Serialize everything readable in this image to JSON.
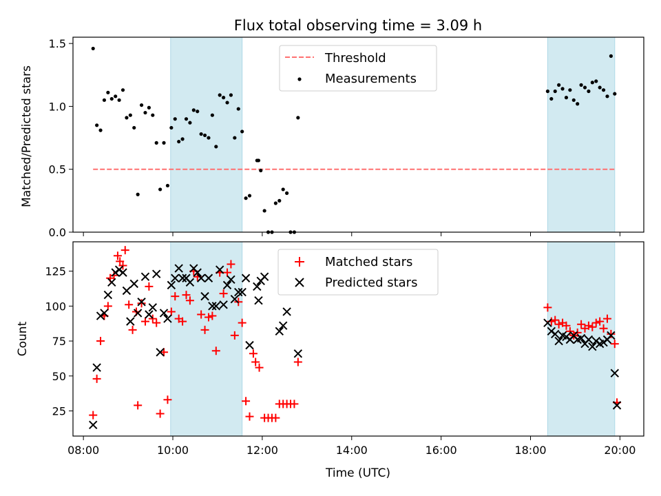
{
  "colors": {
    "threshold": "#ff7070",
    "measurements": "#000000",
    "matched": "#ff0000",
    "predicted": "#000000",
    "shade": "#add8e6"
  },
  "chart_data": [
    {
      "type": "scatter",
      "title": "Flux total observing time = 3.09 h",
      "xlabel": "",
      "ylabel": "Matched/Predicted stars",
      "ylim": [
        0,
        1.55
      ],
      "xlim": [
        "07:46",
        "20:32"
      ],
      "yticks": [
        {
          "v": 0.0,
          "label": "0.0"
        },
        {
          "v": 0.5,
          "label": "0.5"
        },
        {
          "v": 1.0,
          "label": "1.0"
        },
        {
          "v": 1.5,
          "label": "1.5"
        }
      ],
      "legend": {
        "placement": "upper-center",
        "entries": [
          "Threshold",
          "Measurements"
        ]
      },
      "shaded_spans": [
        [
          "09:57",
          "11:33"
        ],
        [
          "18:23",
          "19:53"
        ]
      ],
      "threshold": {
        "name": "Threshold",
        "value": 0.5,
        "x": [
          "08:13",
          "19:53"
        ]
      },
      "measurements": {
        "name": "Measurements",
        "points": [
          [
            "08:13",
            1.46
          ],
          [
            "08:18",
            0.85
          ],
          [
            "08:23",
            0.81
          ],
          [
            "08:28",
            1.05
          ],
          [
            "08:33",
            1.11
          ],
          [
            "08:38",
            1.06
          ],
          [
            "08:43",
            1.08
          ],
          [
            "08:48",
            1.05
          ],
          [
            "08:53",
            1.13
          ],
          [
            "08:58",
            0.91
          ],
          [
            "09:03",
            0.93
          ],
          [
            "09:08",
            0.83
          ],
          [
            "09:13",
            0.3
          ],
          [
            "09:18",
            1.01
          ],
          [
            "09:23",
            0.95
          ],
          [
            "09:28",
            0.99
          ],
          [
            "09:33",
            0.93
          ],
          [
            "09:38",
            0.71
          ],
          [
            "09:43",
            0.34
          ],
          [
            "09:48",
            0.71
          ],
          [
            "09:53",
            0.37
          ],
          [
            "09:58",
            0.83
          ],
          [
            "10:03",
            0.9
          ],
          [
            "10:08",
            0.72
          ],
          [
            "10:13",
            0.74
          ],
          [
            "10:18",
            0.9
          ],
          [
            "10:23",
            0.87
          ],
          [
            "10:28",
            0.97
          ],
          [
            "10:33",
            0.96
          ],
          [
            "10:38",
            0.78
          ],
          [
            "10:43",
            0.77
          ],
          [
            "10:48",
            0.75
          ],
          [
            "10:53",
            0.93
          ],
          [
            "10:58",
            0.68
          ],
          [
            "11:03",
            1.09
          ],
          [
            "11:08",
            1.07
          ],
          [
            "11:13",
            1.03
          ],
          [
            "11:18",
            1.09
          ],
          [
            "11:23",
            0.75
          ],
          [
            "11:28",
            0.98
          ],
          [
            "11:33",
            0.8
          ],
          [
            "11:38",
            0.27
          ],
          [
            "11:43",
            0.29
          ],
          [
            "11:53",
            0.57
          ],
          [
            "11:55",
            0.57
          ],
          [
            "11:58",
            0.49
          ],
          [
            "12:03",
            0.17
          ],
          [
            "12:08",
            0.0
          ],
          [
            "12:13",
            0.0
          ],
          [
            "12:18",
            0.23
          ],
          [
            "12:23",
            0.25
          ],
          [
            "12:28",
            0.34
          ],
          [
            "12:33",
            0.31
          ],
          [
            "12:38",
            0.0
          ],
          [
            "12:43",
            0.0
          ],
          [
            "12:48",
            0.91
          ],
          [
            "18:23",
            1.12
          ],
          [
            "18:28",
            1.06
          ],
          [
            "18:33",
            1.12
          ],
          [
            "18:38",
            1.17
          ],
          [
            "18:43",
            1.14
          ],
          [
            "18:48",
            1.07
          ],
          [
            "18:53",
            1.13
          ],
          [
            "18:58",
            1.05
          ],
          [
            "19:03",
            1.02
          ],
          [
            "19:08",
            1.17
          ],
          [
            "19:13",
            1.15
          ],
          [
            "19:18",
            1.12
          ],
          [
            "19:23",
            1.19
          ],
          [
            "19:28",
            1.2
          ],
          [
            "19:33",
            1.15
          ],
          [
            "19:38",
            1.13
          ],
          [
            "19:43",
            1.08
          ],
          [
            "19:48",
            1.4
          ],
          [
            "19:53",
            1.1
          ]
        ]
      }
    },
    {
      "type": "scatter",
      "xlabel": "Time (UTC)",
      "ylabel": "Count",
      "ylim": [
        7,
        146
      ],
      "xlim": [
        "07:46",
        "20:32"
      ],
      "yticks": [
        {
          "v": 25,
          "label": "25"
        },
        {
          "v": 50,
          "label": "50"
        },
        {
          "v": 75,
          "label": "75"
        },
        {
          "v": 100,
          "label": "100"
        },
        {
          "v": 125,
          "label": "125"
        }
      ],
      "xticks": [
        {
          "t": "08:00",
          "label": "08:00"
        },
        {
          "t": "10:00",
          "label": "10:00"
        },
        {
          "t": "12:00",
          "label": "12:00"
        },
        {
          "t": "14:00",
          "label": "14:00"
        },
        {
          "t": "16:00",
          "label": "16:00"
        },
        {
          "t": "18:00",
          "label": "18:00"
        },
        {
          "t": "20:00",
          "label": "20:00"
        }
      ],
      "legend": {
        "placement": "upper-center",
        "entries": [
          "Matched stars",
          "Predicted stars"
        ]
      },
      "shaded_spans": [
        [
          "09:57",
          "11:33"
        ],
        [
          "18:23",
          "19:53"
        ]
      ],
      "series": [
        {
          "name": "Matched stars",
          "marker": "plus",
          "points": [
            [
              "08:13",
              22
            ],
            [
              "08:18",
              48
            ],
            [
              "08:23",
              75
            ],
            [
              "08:28",
              93
            ],
            [
              "08:33",
              100
            ],
            [
              "08:36",
              120
            ],
            [
              "08:41",
              122
            ],
            [
              "08:46",
              136
            ],
            [
              "08:49",
              132
            ],
            [
              "08:53",
              129
            ],
            [
              "08:56",
              140
            ],
            [
              "09:01",
              101
            ],
            [
              "09:06",
              83
            ],
            [
              "09:11",
              96
            ],
            [
              "09:13",
              29
            ],
            [
              "09:18",
              102
            ],
            [
              "09:23",
              89
            ],
            [
              "09:28",
              114
            ],
            [
              "09:33",
              91
            ],
            [
              "09:38",
              88
            ],
            [
              "09:43",
              23
            ],
            [
              "09:48",
              67
            ],
            [
              "09:53",
              33
            ],
            [
              "09:58",
              96
            ],
            [
              "10:03",
              107
            ],
            [
              "10:08",
              91
            ],
            [
              "10:13",
              89
            ],
            [
              "10:18",
              108
            ],
            [
              "10:23",
              104
            ],
            [
              "10:28",
              125
            ],
            [
              "10:33",
              121
            ],
            [
              "10:38",
              94
            ],
            [
              "10:43",
              83
            ],
            [
              "10:48",
              92
            ],
            [
              "10:53",
              93
            ],
            [
              "10:58",
              68
            ],
            [
              "11:03",
              124
            ],
            [
              "11:08",
              109
            ],
            [
              "11:13",
              124
            ],
            [
              "11:18",
              130
            ],
            [
              "11:23",
              79
            ],
            [
              "11:28",
              103
            ],
            [
              "11:33",
              88
            ],
            [
              "11:38",
              32
            ],
            [
              "11:43",
              21
            ],
            [
              "11:48",
              66
            ],
            [
              "11:51",
              60
            ],
            [
              "11:56",
              56
            ],
            [
              "12:03",
              20
            ],
            [
              "12:08",
              20
            ],
            [
              "12:13",
              20
            ],
            [
              "12:18",
              20
            ],
            [
              "12:23",
              30
            ],
            [
              "12:28",
              30
            ],
            [
              "12:33",
              30
            ],
            [
              "12:38",
              30
            ],
            [
              "12:43",
              30
            ],
            [
              "12:48",
              60
            ],
            [
              "18:23",
              99
            ],
            [
              "18:28",
              89
            ],
            [
              "18:33",
              90
            ],
            [
              "18:38",
              87
            ],
            [
              "18:43",
              88
            ],
            [
              "18:48",
              86
            ],
            [
              "18:53",
              82
            ],
            [
              "18:58",
              79
            ],
            [
              "19:03",
              81
            ],
            [
              "19:08",
              87
            ],
            [
              "19:13",
              84
            ],
            [
              "19:18",
              86
            ],
            [
              "19:23",
              85
            ],
            [
              "19:28",
              88
            ],
            [
              "19:33",
              89
            ],
            [
              "19:38",
              84
            ],
            [
              "19:43",
              91
            ],
            [
              "19:48",
              80
            ],
            [
              "19:53",
              73
            ],
            [
              "19:56",
              31
            ]
          ]
        },
        {
          "name": "Predicted stars",
          "marker": "x",
          "points": [
            [
              "08:13",
              15
            ],
            [
              "08:18",
              56
            ],
            [
              "08:23",
              93
            ],
            [
              "08:28",
              95
            ],
            [
              "08:33",
              108
            ],
            [
              "08:38",
              117
            ],
            [
              "08:43",
              124
            ],
            [
              "08:48",
              126
            ],
            [
              "08:53",
              124
            ],
            [
              "08:58",
              111
            ],
            [
              "09:03",
              89
            ],
            [
              "09:08",
              116
            ],
            [
              "09:13",
              95
            ],
            [
              "09:18",
              103
            ],
            [
              "09:23",
              121
            ],
            [
              "09:28",
              94
            ],
            [
              "09:33",
              99
            ],
            [
              "09:38",
              123
            ],
            [
              "09:43",
              67
            ],
            [
              "09:48",
              95
            ],
            [
              "09:53",
              91
            ],
            [
              "09:58",
              115
            ],
            [
              "10:03",
              120
            ],
            [
              "10:08",
              127
            ],
            [
              "10:13",
              120
            ],
            [
              "10:18",
              120
            ],
            [
              "10:23",
              117
            ],
            [
              "10:28",
              127
            ],
            [
              "10:33",
              124
            ],
            [
              "10:38",
              120
            ],
            [
              "10:43",
              107
            ],
            [
              "10:48",
              120
            ],
            [
              "10:53",
              100
            ],
            [
              "10:58",
              100
            ],
            [
              "11:03",
              126
            ],
            [
              "11:08",
              101
            ],
            [
              "11:13",
              115
            ],
            [
              "11:18",
              119
            ],
            [
              "11:23",
              105
            ],
            [
              "11:28",
              110
            ],
            [
              "11:33",
              110
            ],
            [
              "11:38",
              120
            ],
            [
              "11:43",
              72
            ],
            [
              "11:53",
              114
            ],
            [
              "11:55",
              104
            ],
            [
              "11:58",
              118
            ],
            [
              "12:03",
              121
            ],
            [
              "12:23",
              82
            ],
            [
              "12:28",
              86
            ],
            [
              "12:33",
              96
            ],
            [
              "12:48",
              66
            ],
            [
              "18:23",
              88
            ],
            [
              "18:28",
              82
            ],
            [
              "18:33",
              80
            ],
            [
              "18:38",
              75
            ],
            [
              "18:43",
              79
            ],
            [
              "18:48",
              78
            ],
            [
              "18:53",
              76
            ],
            [
              "18:58",
              79
            ],
            [
              "19:03",
              76
            ],
            [
              "19:08",
              77
            ],
            [
              "19:13",
              73
            ],
            [
              "19:18",
              76
            ],
            [
              "19:23",
              71
            ],
            [
              "19:28",
              75
            ],
            [
              "19:33",
              73
            ],
            [
              "19:38",
              74
            ],
            [
              "19:43",
              76
            ],
            [
              "19:48",
              79
            ],
            [
              "19:53",
              52
            ],
            [
              "19:56",
              29
            ]
          ]
        }
      ]
    }
  ]
}
